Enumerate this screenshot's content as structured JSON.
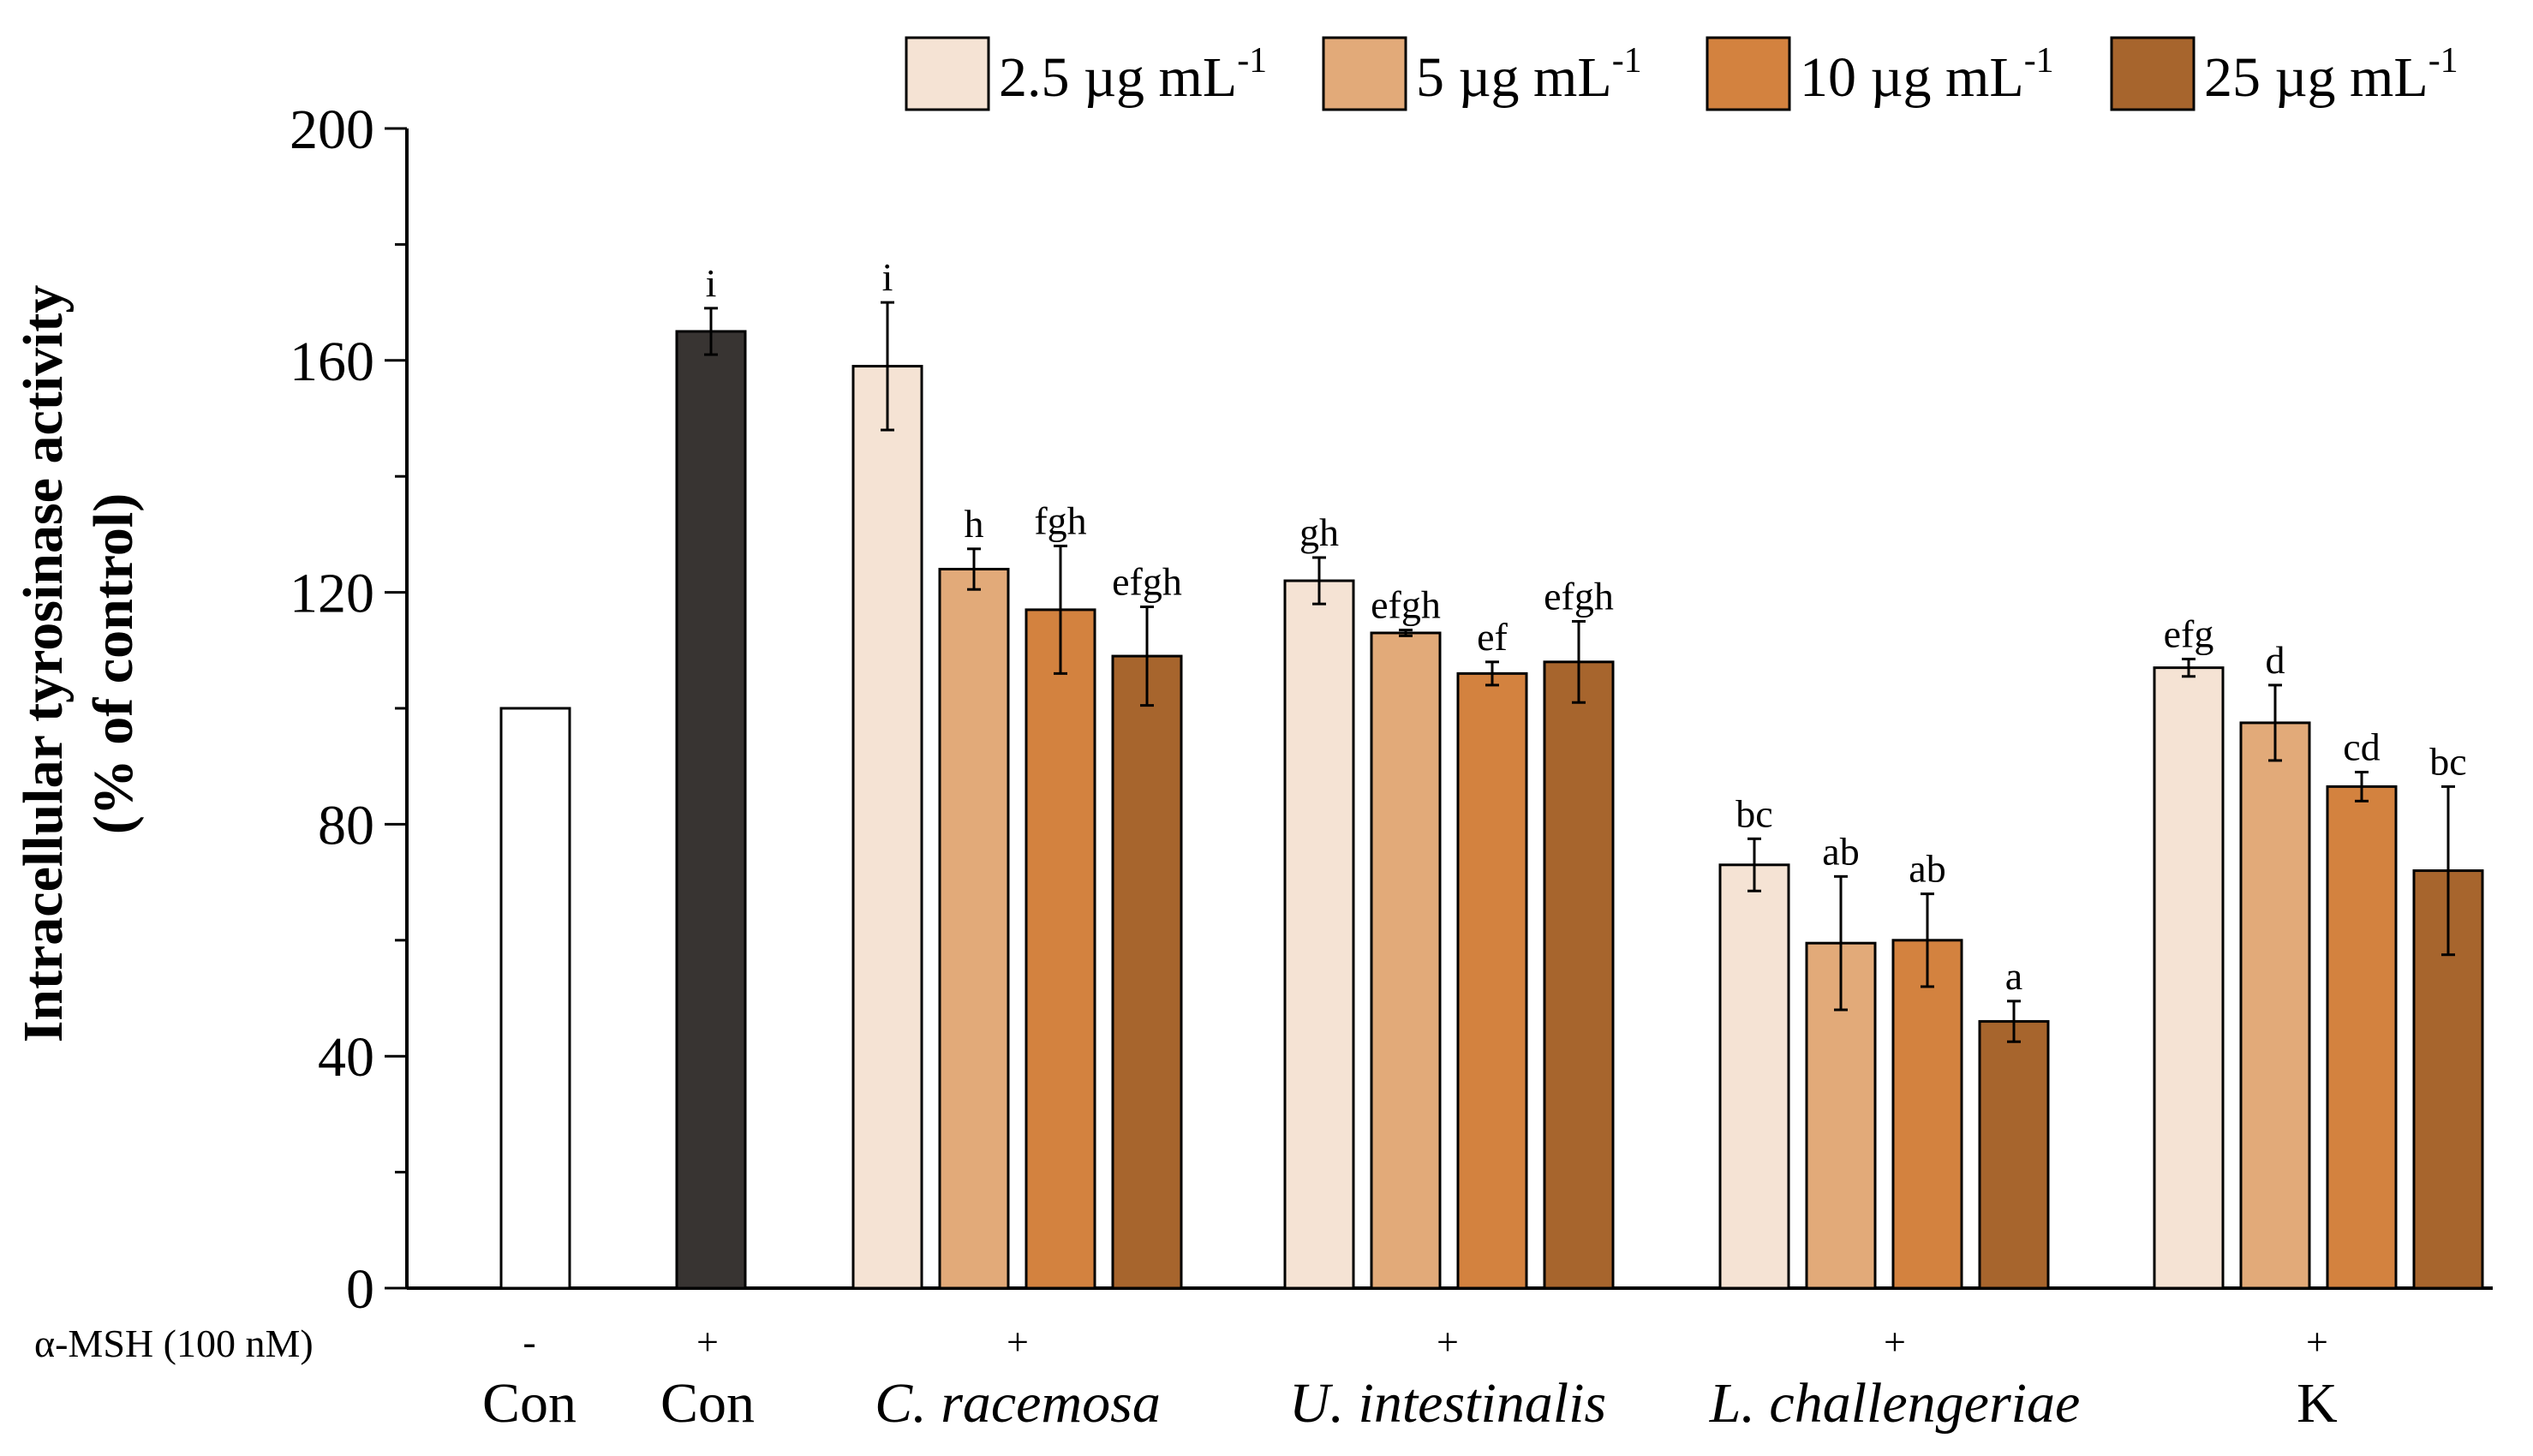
{
  "chart_data": {
    "type": "bar",
    "ylabel_line1": "Intracellular tyrosinase activity",
    "ylabel_line2": "(% of control)",
    "ylim": [
      0,
      200
    ],
    "yticks": [
      0,
      40,
      80,
      120,
      160,
      200
    ],
    "treatment_row_label": "α-MSH (100 nM)",
    "legend": [
      {
        "label": "2.5 µg mL",
        "sup": "-1",
        "color": "#f5e3d4"
      },
      {
        "label": "5 µg mL",
        "sup": "-1",
        "color": "#e2aa79"
      },
      {
        "label": "10 µg mL",
        "sup": "-1",
        "color": "#d3823f"
      },
      {
        "label": "25 µg mL",
        "sup": "-1",
        "color": "#a7652d"
      }
    ],
    "groups": [
      {
        "label": "Con",
        "italic": false,
        "msh": "-",
        "bars": [
          {
            "value": 100,
            "error": 0,
            "letter": "",
            "color": "#ffffff"
          }
        ]
      },
      {
        "label": "Con",
        "italic": false,
        "msh": "+",
        "bars": [
          {
            "value": 165,
            "error": 4,
            "letter": "i",
            "color": "#383432"
          }
        ]
      },
      {
        "label": "C. racemosa",
        "italic": true,
        "msh": "+",
        "bars": [
          {
            "value": 159,
            "error": 11,
            "letter": "i",
            "series": 0
          },
          {
            "value": 124,
            "error": 3.5,
            "letter": "h",
            "series": 1
          },
          {
            "value": 117,
            "error": 11,
            "letter": "fgh",
            "series": 2
          },
          {
            "value": 109,
            "error": 8.5,
            "letter": "efgh",
            "series": 3
          }
        ]
      },
      {
        "label": "U. intestinalis",
        "italic": true,
        "msh": "+",
        "bars": [
          {
            "value": 122,
            "error": 4,
            "letter": "gh",
            "series": 0
          },
          {
            "value": 113,
            "error": 0.5,
            "letter": "efgh",
            "series": 1
          },
          {
            "value": 106,
            "error": 2,
            "letter": "ef",
            "series": 2
          },
          {
            "value": 108,
            "error": 7,
            "letter": "efgh",
            "series": 3
          }
        ]
      },
      {
        "label": "L. challengeriae",
        "italic": true,
        "msh": "+",
        "bars": [
          {
            "value": 73,
            "error": 4.5,
            "letter": "bc",
            "series": 0
          },
          {
            "value": 59.5,
            "error": 11.5,
            "letter": "ab",
            "series": 1
          },
          {
            "value": 60,
            "error": 8,
            "letter": "ab",
            "series": 2
          },
          {
            "value": 46,
            "error": 3.5,
            "letter": "a",
            "series": 3
          }
        ]
      },
      {
        "label": "K",
        "italic": false,
        "msh": "+",
        "bars": [
          {
            "value": 107,
            "error": 1.5,
            "letter": "efg",
            "series": 0
          },
          {
            "value": 97.5,
            "error": 6.5,
            "letter": "d",
            "series": 1
          },
          {
            "value": 86.5,
            "error": 2.5,
            "letter": "cd",
            "series": 2
          },
          {
            "value": 72,
            "error": 14.5,
            "letter": "bc",
            "series": 3
          }
        ]
      }
    ]
  }
}
